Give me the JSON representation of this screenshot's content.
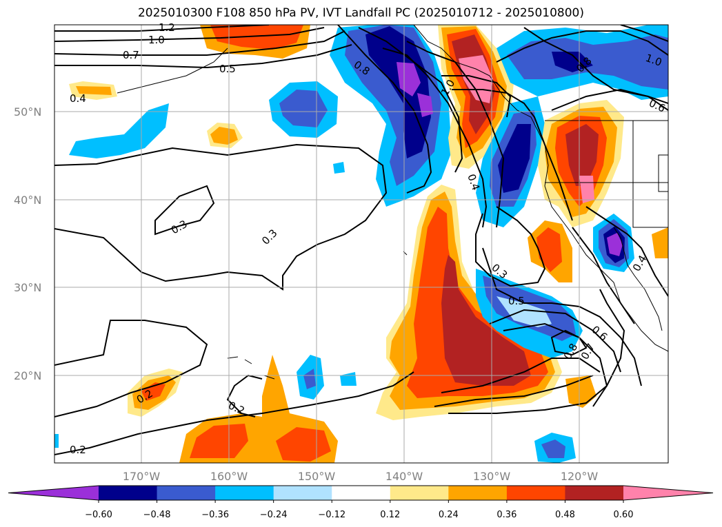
{
  "title": "2025010300 F108 850 hPa PV, IVT Landfall PC (2025010712 - 2025010800)",
  "lat_labels": [
    "50°N",
    "40°N",
    "30°N",
    "20°N"
  ],
  "lon_labels": [
    "170°W",
    "160°W",
    "150°W",
    "140°W",
    "130°W",
    "120°W"
  ],
  "colorbar": {
    "colors": [
      "#9b30d9",
      "#00008b",
      "#3a5bcf",
      "#00bfff",
      "#b0e2ff",
      "#ffffff",
      "#ffe98a",
      "#ffa500",
      "#ff4500",
      "#b22222",
      "#ff82ab"
    ],
    "labels": [
      "−0.60",
      "−0.48",
      "−0.36",
      "−0.24",
      "−0.12",
      "0.12",
      "0.24",
      "0.36",
      "0.48",
      "0.60"
    ]
  },
  "contour_labels": [
    "1.2",
    "1.0",
    "0.7",
    "0.5",
    "0.4",
    "0.8",
    "1.0",
    "0.4",
    "0.3",
    "0.3",
    "0.3",
    "0.5",
    "0.6",
    "0.8",
    "0.7",
    "0.2",
    "0.2",
    "0.2",
    "1.0",
    "0.8",
    "0.6",
    "0.4"
  ]
}
